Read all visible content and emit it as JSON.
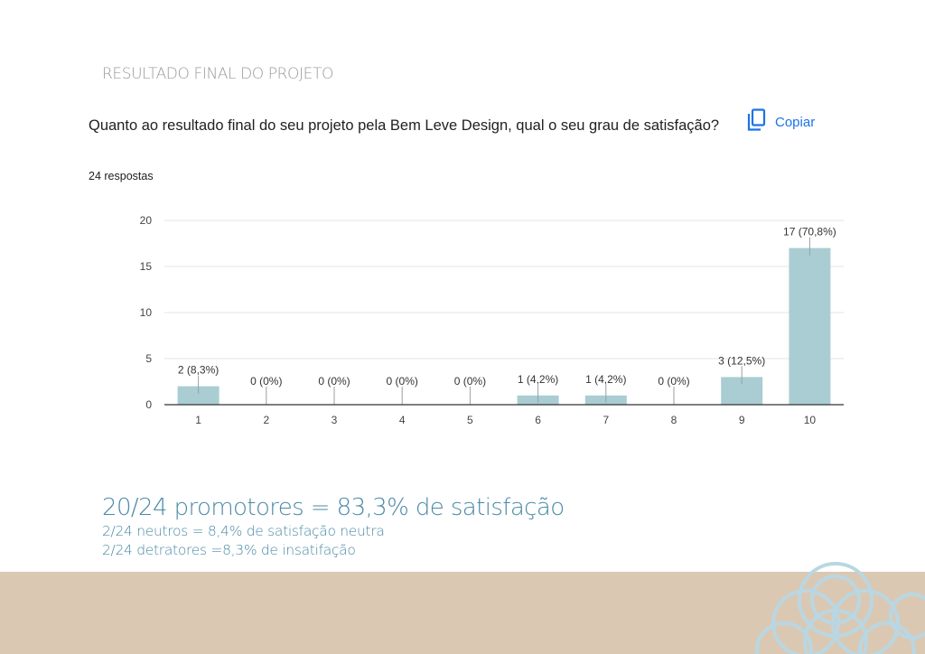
{
  "section_title": "RESULTADO FINAL DO PROJETO",
  "question": {
    "text": "Quanto ao resultado final do seu projeto pela Bem Leve Design, qual o seu grau de satisfação?",
    "copy_label": "Copiar",
    "responses": "24 respostas"
  },
  "chart_data": {
    "type": "bar",
    "categories": [
      "1",
      "2",
      "3",
      "4",
      "5",
      "6",
      "7",
      "8",
      "9",
      "10"
    ],
    "values": [
      2,
      0,
      0,
      0,
      0,
      1,
      1,
      0,
      3,
      17
    ],
    "data_labels": [
      "2 (8,3%)",
      "0 (0%)",
      "0 (0%)",
      "0 (0%)",
      "0 (0%)",
      "1 (4,2%)",
      "1 (4,2%)",
      "0 (0%)",
      "3 (12,5%)",
      "17 (70,8%)"
    ],
    "y_ticks": [
      0,
      5,
      10,
      15,
      20
    ],
    "ylim": [
      0,
      20
    ],
    "grid": true,
    "bar_color": "#a9cdd3"
  },
  "summary": {
    "promoters": "20/24 promotores = 83,3% de satisfação",
    "neutrals": "2/24 neutros = 8,4% de satisfação neutra",
    "detractors": "2/24 detratores =8,3% de insatifação"
  },
  "colors": {
    "accent_text": "#4a89a6",
    "footer_band": "#dbc8b3",
    "decor_stroke": "#b9d7e3",
    "link": "#1a73e8"
  }
}
